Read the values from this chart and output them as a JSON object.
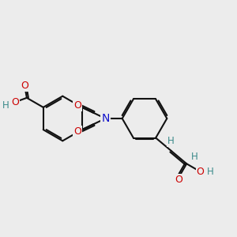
{
  "bg": "#ececec",
  "bond_color": "#111111",
  "atom_colors": {
    "O": "#cc0000",
    "N": "#1111cc",
    "H": "#3a8a8a"
  },
  "lw": 1.5,
  "fs": 8.5
}
